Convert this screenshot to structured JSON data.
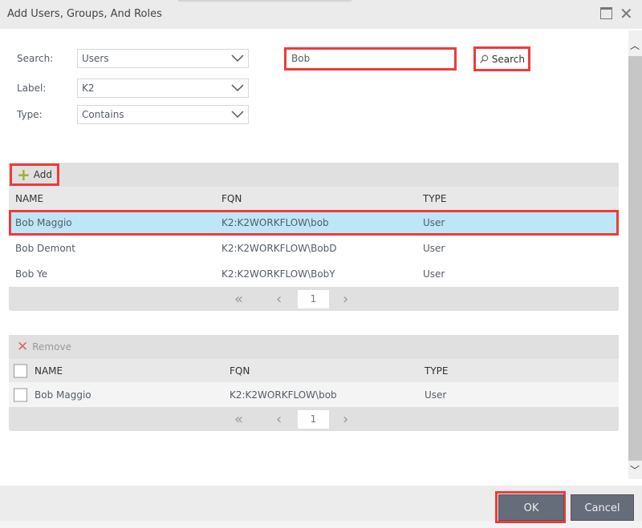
{
  "dialog": {
    "title": "Add Users, Groups, And Roles"
  },
  "form": {
    "search_label": "Search:",
    "search_value": "Users",
    "label_label": "Label:",
    "label_value": "K2",
    "type_label": "Type:",
    "type_value": "Contains",
    "query": "Bob",
    "search_button": "Search"
  },
  "results": {
    "add_label": "Add",
    "columns": [
      "NAME",
      "FQN",
      "TYPE"
    ],
    "rows": [
      {
        "name": "Bob Maggio",
        "fqn": "K2:K2WORKFLOW\\bob",
        "type": "User",
        "selected": true
      },
      {
        "name": "Bob Demont",
        "fqn": "K2:K2WORKFLOW\\BobD",
        "type": "User"
      },
      {
        "name": "Bob Ye",
        "fqn": "K2:K2WORKFLOW\\BobY",
        "type": "User"
      }
    ],
    "page": "1"
  },
  "selected": {
    "remove_label": "Remove",
    "columns": [
      "NAME",
      "FQN",
      "TYPE"
    ],
    "rows": [
      {
        "name": "Bob Maggio",
        "fqn": "K2:K2WORKFLOW\\bob",
        "type": "User"
      }
    ],
    "page": "1"
  },
  "footer": {
    "ok": "OK",
    "cancel": "Cancel"
  },
  "colors": {
    "highlight": "#bde6f7",
    "annotation": "#ee3b3b",
    "button": "#656d7a"
  }
}
